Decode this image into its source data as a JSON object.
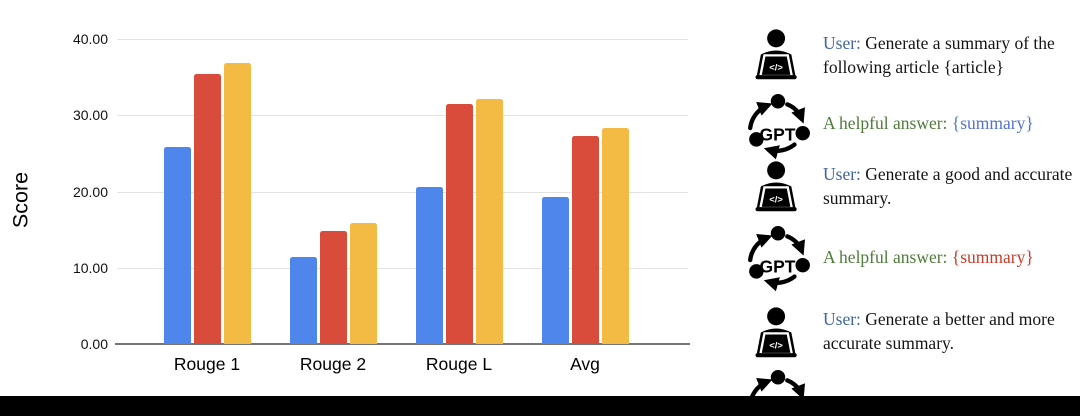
{
  "chart_data": {
    "type": "bar",
    "title": "",
    "xlabel": "",
    "ylabel": "Score",
    "categories": [
      "Rouge 1",
      "Rouge 2",
      "Rouge L",
      "Avg"
    ],
    "series": [
      {
        "name": "blue",
        "color": "#4f86ec",
        "values": [
          25.9,
          11.4,
          20.6,
          19.3
        ]
      },
      {
        "name": "red",
        "color": "#d94c3c",
        "values": [
          35.4,
          14.8,
          31.5,
          27.3
        ]
      },
      {
        "name": "yellow",
        "color": "#f4bb44",
        "values": [
          36.9,
          15.9,
          32.1,
          28.3
        ]
      }
    ],
    "ylim": [
      0,
      40
    ],
    "yticks": [
      {
        "value": 0,
        "label": "0.00"
      },
      {
        "value": 10,
        "label": "10.00"
      },
      {
        "value": 20,
        "label": "20.00"
      },
      {
        "value": 30,
        "label": "30.00"
      },
      {
        "value": 40,
        "label": "40.00"
      }
    ],
    "grid": true,
    "legend": "none"
  },
  "conversation": {
    "gpt_icon_text": "GPT",
    "user_icon_code": "</>",
    "items": [
      {
        "icon": "user",
        "prefix": "User:",
        "prefix_color": "#3f64a9",
        "line1": " Generate a summary of the",
        "line2": "following article {article}"
      },
      {
        "icon": "gpt",
        "prefix": "A helpful answer:",
        "prefix_color": "#4e7b3a",
        "value": " {summary}",
        "value_color": "#5472d3"
      },
      {
        "icon": "user",
        "prefix": "User:",
        "prefix_color": "#3f64a9",
        "line1": " Generate a good and accurate",
        "line2": "summary."
      },
      {
        "icon": "gpt",
        "prefix": "A helpful answer:",
        "prefix_color": "#4e7b3a",
        "value": " {summary}",
        "value_color": "#cc3a28"
      },
      {
        "icon": "user",
        "prefix": "User:",
        "prefix_color": "#3f64a9",
        "line1": " Generate a better and more",
        "line2": "accurate summary."
      },
      {
        "icon": "gpt-partial"
      }
    ]
  },
  "colors": {
    "axis": "#757575",
    "grid": "#e2e2e2",
    "icon": "#000000",
    "bottom_bar": "#000000"
  }
}
